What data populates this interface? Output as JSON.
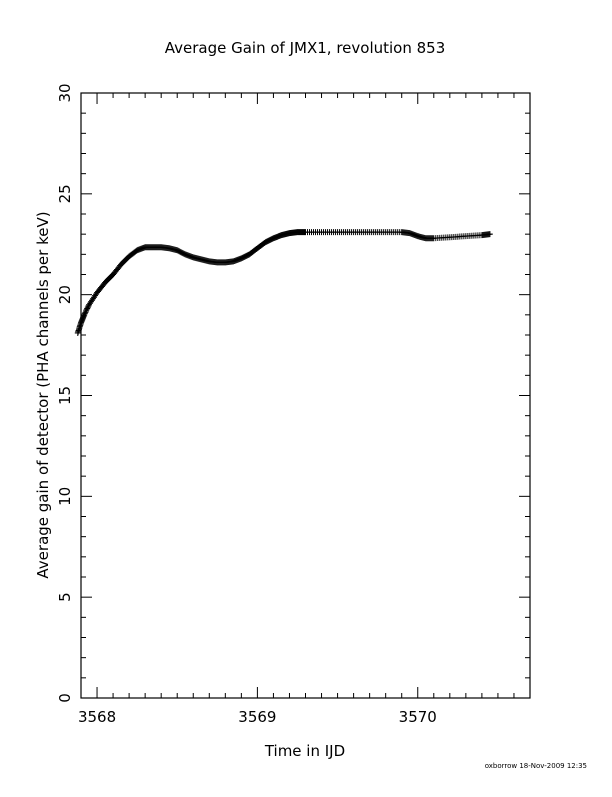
{
  "chart_data": {
    "type": "scatter",
    "title": "Average Gain of JMX1, revolution 853",
    "xlabel": "Time in IJD",
    "ylabel": "Average gain of detector (PHA channels per keV)",
    "xlim": [
      3567.9,
      3570.7
    ],
    "ylim": [
      0,
      30
    ],
    "x_ticks": [
      "3568",
      "3569",
      "3570"
    ],
    "y_ticks": [
      "0",
      "5",
      "10",
      "15",
      "20",
      "25",
      "30"
    ],
    "marker": "plus",
    "color": "#000000",
    "grid": false,
    "series": [
      {
        "x": [
          3567.88,
          3567.9,
          3567.92,
          3567.95,
          3568.0,
          3568.05,
          3568.1,
          3568.15,
          3568.2,
          3568.25,
          3568.3,
          3568.35,
          3568.4,
          3568.45,
          3568.5,
          3568.55,
          3568.6,
          3568.65,
          3568.7,
          3568.75,
          3568.8,
          3568.85,
          3568.9,
          3568.95,
          3569.0,
          3569.05,
          3569.1,
          3569.15,
          3569.2,
          3569.25,
          3569.3,
          3569.4,
          3569.5,
          3569.6,
          3569.7,
          3569.8,
          3569.9,
          3569.95,
          3570.0,
          3570.05,
          3570.1,
          3570.2,
          3570.3,
          3570.4,
          3570.45
        ],
        "y": [
          18.1,
          18.6,
          19.0,
          19.5,
          20.1,
          20.6,
          21.0,
          21.5,
          21.9,
          22.2,
          22.35,
          22.35,
          22.35,
          22.3,
          22.2,
          22.0,
          21.85,
          21.75,
          21.65,
          21.6,
          21.6,
          21.65,
          21.8,
          22.0,
          22.3,
          22.6,
          22.8,
          22.95,
          23.05,
          23.1,
          23.1,
          23.1,
          23.1,
          23.1,
          23.1,
          23.1,
          23.1,
          23.05,
          22.9,
          22.8,
          22.8,
          22.85,
          22.9,
          22.95,
          23.0
        ]
      }
    ]
  },
  "footer": "oxborrow 18-Nov-2009 12:35"
}
